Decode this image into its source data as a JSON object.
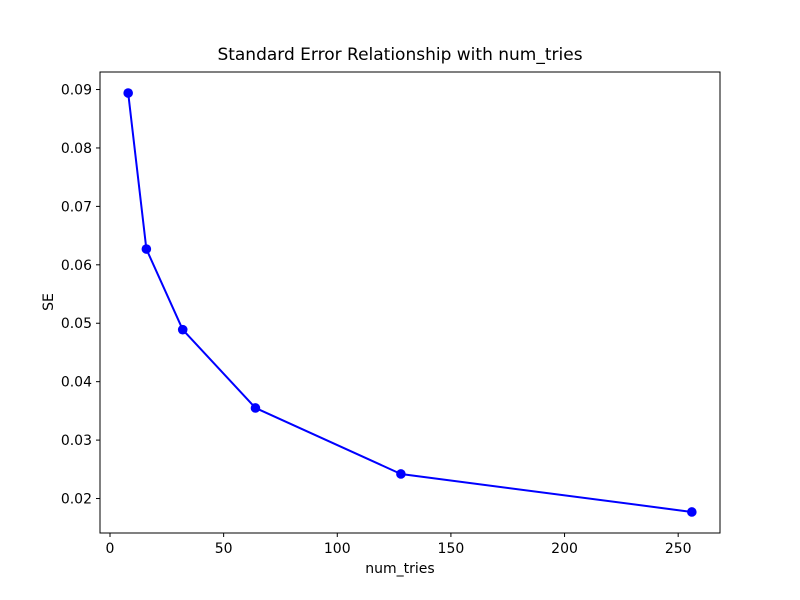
{
  "figure": {
    "background_color": "#ffffff",
    "text_color": "#000000",
    "axes_color": "#000000"
  },
  "chart_data": {
    "type": "line",
    "title": "Standard Error Relationship with num_tries",
    "xlabel": "num_tries",
    "ylabel": "SE",
    "x": [
      8,
      16,
      32,
      64,
      128,
      256
    ],
    "y": [
      0.0894,
      0.0627,
      0.0489,
      0.0355,
      0.0242,
      0.0177
    ],
    "line_color": "#0000ff",
    "marker": "circle",
    "marker_color": "#0000ff",
    "xlim": [
      -4.4,
      268.4
    ],
    "ylim": [
      0.0141,
      0.093
    ],
    "xticks": [
      0,
      50,
      100,
      150,
      200,
      250
    ],
    "xtick_labels": [
      "0",
      "50",
      "100",
      "150",
      "200",
      "250"
    ],
    "yticks": [
      0.02,
      0.03,
      0.04,
      0.05,
      0.06,
      0.07,
      0.08,
      0.09
    ],
    "ytick_labels": [
      "0.02",
      "0.03",
      "0.04",
      "0.05",
      "0.06",
      "0.07",
      "0.08",
      "0.09"
    ],
    "grid": false,
    "legend": null
  }
}
